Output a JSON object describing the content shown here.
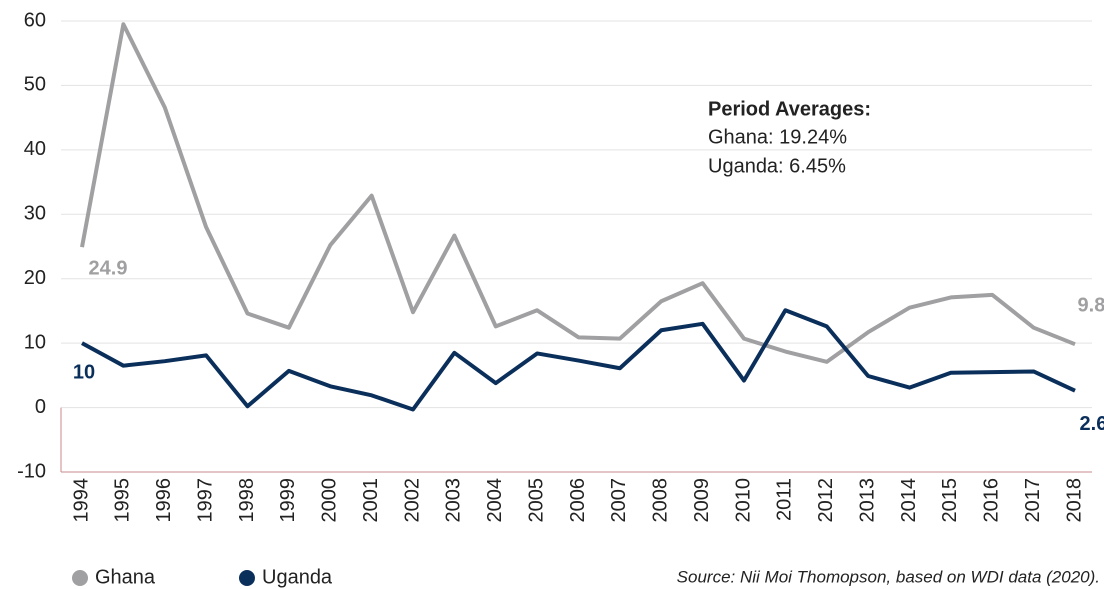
{
  "chart_data": {
    "type": "line",
    "categories": [
      "1994",
      "1995",
      "1996",
      "1997",
      "1998",
      "1999",
      "2000",
      "2001",
      "2002",
      "2003",
      "2004",
      "2005",
      "2006",
      "2007",
      "2008",
      "2009",
      "2010",
      "2011",
      "2012",
      "2013",
      "2014",
      "2015",
      "2016",
      "2017",
      "2018"
    ],
    "series": [
      {
        "name": "Ghana",
        "color": "#a0a0a2",
        "values": [
          24.9,
          59.5,
          46.6,
          28,
          14.6,
          12.4,
          25.2,
          32.9,
          14.8,
          26.7,
          12.6,
          15.1,
          10.9,
          10.7,
          16.5,
          19.3,
          10.7,
          8.7,
          7.1,
          11.7,
          15.5,
          17.1,
          17.5,
          12.4,
          9.84
        ]
      },
      {
        "name": "Uganda",
        "color": "#0b2f5b",
        "values": [
          10,
          6.5,
          7.2,
          8.1,
          0.2,
          5.7,
          3.3,
          1.9,
          -0.3,
          8.5,
          3.8,
          8.4,
          7.3,
          6.1,
          12,
          13,
          4.2,
          15.1,
          12.6,
          4.9,
          3.1,
          5.4,
          5.5,
          5.6,
          2.62
        ]
      }
    ],
    "ylim": [
      -10,
      60
    ],
    "yticks": [
      -10,
      0,
      10,
      20,
      30,
      40,
      50,
      60
    ],
    "grid": true,
    "annotation": {
      "title": "Period Averages:",
      "lines": [
        "Ghana: 19.24%",
        "Uganda: 6.45%"
      ]
    },
    "source": "Source: Nii Moi Thomopson, based on WDI data (2020).",
    "legend": "bottom-left"
  }
}
